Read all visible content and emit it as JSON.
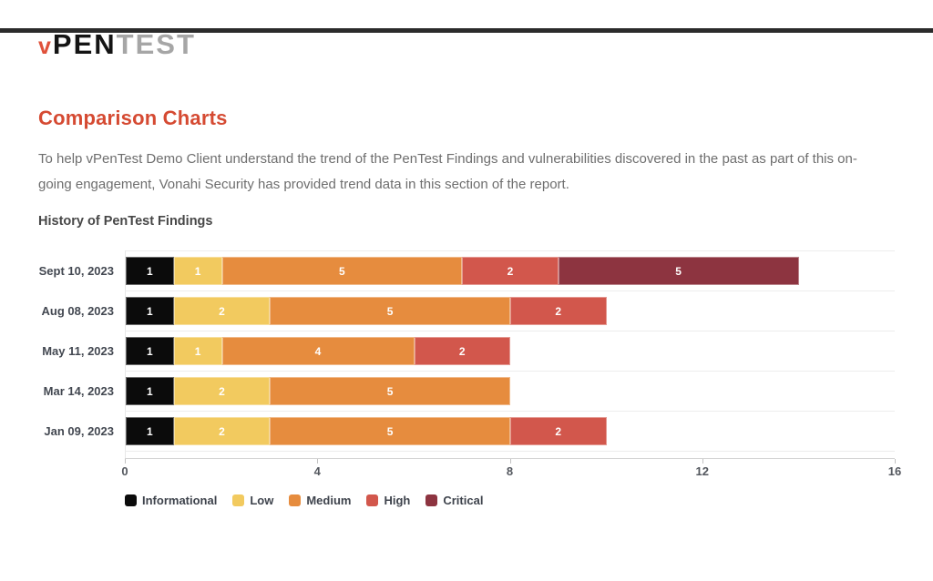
{
  "page": {
    "top_bar_color": "#2b2b2b",
    "background": "#ffffff"
  },
  "logo": {
    "prefix": "v",
    "part1": "PEN",
    "part2": "TEST",
    "prefix_color": "#e0523b",
    "part1_color": "#141414",
    "part2_color": "#a6a6a6"
  },
  "heading": {
    "title": "Comparison Charts",
    "color": "#d54a32"
  },
  "intro": "To help vPenTest Demo Client understand the trend of the PenTest Findings and vulnerabilities discovered in the past as part of this on-going engagement, Vonahi Security has provided trend data in this section of the report.",
  "chart_title": "History of PenTest Findings",
  "chart_data": {
    "type": "bar",
    "orientation": "horizontal",
    "stacked": true,
    "title": "History of PenTest Findings",
    "categories": [
      "Sept 10, 2023",
      "Aug 08, 2023",
      "May 11, 2023",
      "Mar 14, 2023",
      "Jan 09, 2023"
    ],
    "series": [
      {
        "name": "Informational",
        "color": "#0b0b0b",
        "values": [
          1,
          1,
          1,
          1,
          1
        ]
      },
      {
        "name": "Low",
        "color": "#f2ca5f",
        "values": [
          1,
          2,
          1,
          2,
          2
        ]
      },
      {
        "name": "Medium",
        "color": "#e68c3e",
        "values": [
          5,
          5,
          4,
          5,
          5
        ]
      },
      {
        "name": "High",
        "color": "#d2574c",
        "values": [
          2,
          2,
          2,
          0,
          2
        ]
      },
      {
        "name": "Critical",
        "color": "#8d3440",
        "values": [
          5,
          0,
          0,
          0,
          0
        ]
      }
    ],
    "totals": [
      14,
      10,
      8,
      8,
      10
    ],
    "xlim": [
      0,
      16
    ],
    "xticks": [
      0,
      4,
      8,
      12,
      16
    ],
    "value_labels": true,
    "legend_position": "bottom",
    "grid": "row-separators"
  }
}
